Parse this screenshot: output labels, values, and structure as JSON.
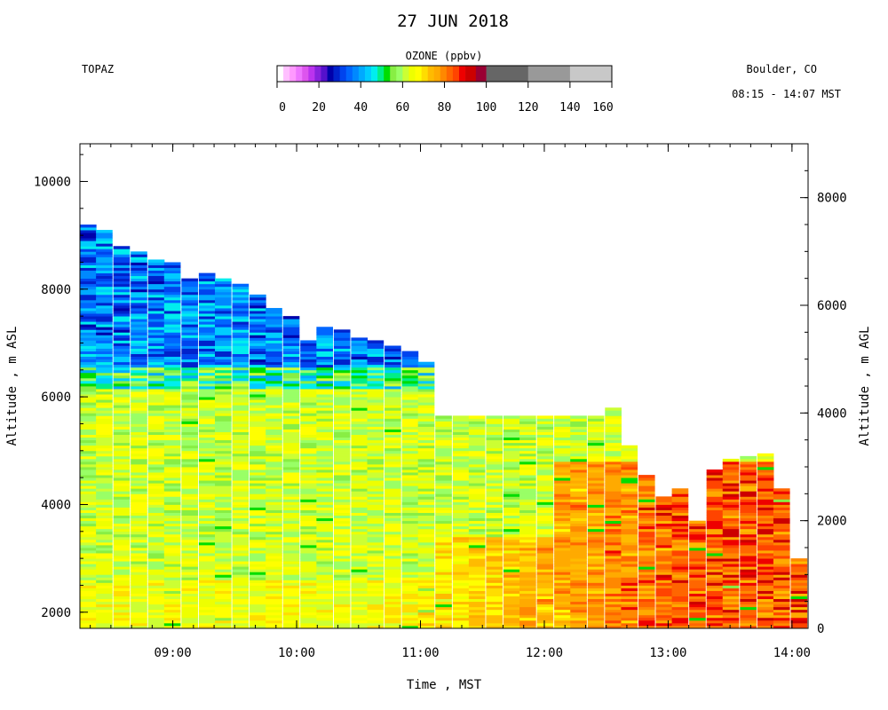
{
  "chart_data": {
    "type": "heatmap",
    "title": "27 JUN 2018",
    "site_label": "TOPAZ",
    "location_label": "Boulder, CO",
    "time_range_label": "08:15 - 14:07 MST",
    "xlabel": "Time , MST",
    "ylabel_left": "Altitude , m ASL",
    "ylabel_right": "Altitude , m AGL",
    "x_ticks": [
      "09:00",
      "10:00",
      "11:00",
      "12:00",
      "13:00",
      "14:00"
    ],
    "y_left_ticks": [
      "2000",
      "4000",
      "6000",
      "8000",
      "10000"
    ],
    "y_right_ticks": [
      "0",
      "2000",
      "4000",
      "6000",
      "8000"
    ],
    "xlim_hours": [
      8.25,
      14.13
    ],
    "ylim_asl_m": [
      1700,
      10700
    ],
    "ground_offset_m": 1700,
    "colorbar": {
      "title": "OZONE (ppbv)",
      "ticks": [
        "0",
        "20",
        "40",
        "60",
        "80",
        "100",
        "120",
        "140",
        "160"
      ],
      "range": [
        0,
        160
      ],
      "bins": [
        {
          "lo": 0,
          "hi": 3,
          "color": "#ffffff"
        },
        {
          "lo": 3,
          "hi": 6,
          "color": "#ffc0ff"
        },
        {
          "lo": 6,
          "hi": 9,
          "color": "#ff99ff"
        },
        {
          "lo": 9,
          "hi": 12,
          "color": "#ee77ff"
        },
        {
          "lo": 12,
          "hi": 15,
          "color": "#dd55ee"
        },
        {
          "lo": 15,
          "hi": 18,
          "color": "#bb33ee"
        },
        {
          "lo": 18,
          "hi": 21,
          "color": "#8822dd"
        },
        {
          "lo": 21,
          "hi": 24,
          "color": "#5511cc"
        },
        {
          "lo": 24,
          "hi": 27,
          "color": "#0000aa"
        },
        {
          "lo": 27,
          "hi": 30,
          "color": "#0022cc"
        },
        {
          "lo": 30,
          "hi": 33,
          "color": "#0044ee"
        },
        {
          "lo": 33,
          "hi": 36,
          "color": "#0066ff"
        },
        {
          "lo": 36,
          "hi": 39,
          "color": "#0088ff"
        },
        {
          "lo": 39,
          "hi": 42,
          "color": "#00aaff"
        },
        {
          "lo": 42,
          "hi": 45,
          "color": "#00ccff"
        },
        {
          "lo": 45,
          "hi": 48,
          "color": "#00eeee"
        },
        {
          "lo": 48,
          "hi": 51,
          "color": "#00ee88"
        },
        {
          "lo": 51,
          "hi": 54,
          "color": "#00dd00"
        },
        {
          "lo": 54,
          "hi": 57,
          "color": "#88ee44"
        },
        {
          "lo": 57,
          "hi": 60,
          "color": "#99ff66"
        },
        {
          "lo": 60,
          "hi": 63,
          "color": "#ccff33"
        },
        {
          "lo": 63,
          "hi": 66,
          "color": "#eeff00"
        },
        {
          "lo": 66,
          "hi": 69,
          "color": "#ffff00"
        },
        {
          "lo": 69,
          "hi": 72,
          "color": "#ffdd00"
        },
        {
          "lo": 72,
          "hi": 75,
          "color": "#ffbb00"
        },
        {
          "lo": 75,
          "hi": 78,
          "color": "#ffaa00"
        },
        {
          "lo": 78,
          "hi": 81,
          "color": "#ff8800"
        },
        {
          "lo": 81,
          "hi": 84,
          "color": "#ff6600"
        },
        {
          "lo": 84,
          "hi": 87,
          "color": "#ff4400"
        },
        {
          "lo": 87,
          "hi": 90,
          "color": "#ee0000"
        },
        {
          "lo": 90,
          "hi": 95,
          "color": "#cc0000"
        },
        {
          "lo": 95,
          "hi": 100,
          "color": "#990033"
        },
        {
          "lo": 100,
          "hi": 120,
          "color": "#666666"
        },
        {
          "lo": 120,
          "hi": 140,
          "color": "#999999"
        },
        {
          "lo": 140,
          "hi": 160,
          "color": "#c8c8c8"
        }
      ]
    },
    "profiles": [
      {
        "time": 8.25,
        "top": 9200
      },
      {
        "time": 8.38,
        "top": 9100
      },
      {
        "time": 8.52,
        "top": 8800
      },
      {
        "time": 8.66,
        "top": 8700
      },
      {
        "time": 8.8,
        "top": 8550
      },
      {
        "time": 8.93,
        "top": 8500
      },
      {
        "time": 9.07,
        "top": 8200
      },
      {
        "time": 9.21,
        "top": 8300
      },
      {
        "time": 9.34,
        "top": 8200
      },
      {
        "time": 9.48,
        "top": 8100
      },
      {
        "time": 9.62,
        "top": 7900
      },
      {
        "time": 9.75,
        "top": 7650
      },
      {
        "time": 9.89,
        "top": 7500
      },
      {
        "time": 10.03,
        "top": 7050
      },
      {
        "time": 10.16,
        "top": 7300
      },
      {
        "time": 10.3,
        "top": 7250
      },
      {
        "time": 10.44,
        "top": 7100
      },
      {
        "time": 10.57,
        "top": 7050
      },
      {
        "time": 10.71,
        "top": 6950
      },
      {
        "time": 10.85,
        "top": 6850
      },
      {
        "time": 10.98,
        "top": 6650
      },
      {
        "time": 11.12,
        "top": 5650
      },
      {
        "time": 11.26,
        "top": 5650
      },
      {
        "time": 11.39,
        "top": 5650
      },
      {
        "time": 11.53,
        "top": 5650
      },
      {
        "time": 11.67,
        "top": 5650
      },
      {
        "time": 11.8,
        "top": 5650
      },
      {
        "time": 11.94,
        "top": 5650
      },
      {
        "time": 12.08,
        "top": 5650
      },
      {
        "time": 12.21,
        "top": 5650
      },
      {
        "time": 12.35,
        "top": 5650
      },
      {
        "time": 12.49,
        "top": 5800
      },
      {
        "time": 12.62,
        "top": 5100
      },
      {
        "time": 12.76,
        "top": 4550
      },
      {
        "time": 12.9,
        "top": 4150
      },
      {
        "time": 13.03,
        "top": 4300
      },
      {
        "time": 13.17,
        "top": 3700
      },
      {
        "time": 13.31,
        "top": 4650
      },
      {
        "time": 13.44,
        "top": 4850
      },
      {
        "time": 13.58,
        "top": 4900
      },
      {
        "time": 13.72,
        "top": 4950
      },
      {
        "time": 13.85,
        "top": 4300
      },
      {
        "time": 13.99,
        "top": 3000
      }
    ],
    "ozone_structure_ppbv": {
      "low_ozone_layer": {
        "min_alt_m": 6500,
        "range": [
          25,
          50
        ],
        "until_time": 11.0
      },
      "mid_troposphere": {
        "range": [
          55,
          68
        ]
      },
      "boundary_layer_afternoon": {
        "range": [
          72,
          90
        ],
        "from_time": 11.5,
        "max_alt_m": 4800
      }
    }
  }
}
